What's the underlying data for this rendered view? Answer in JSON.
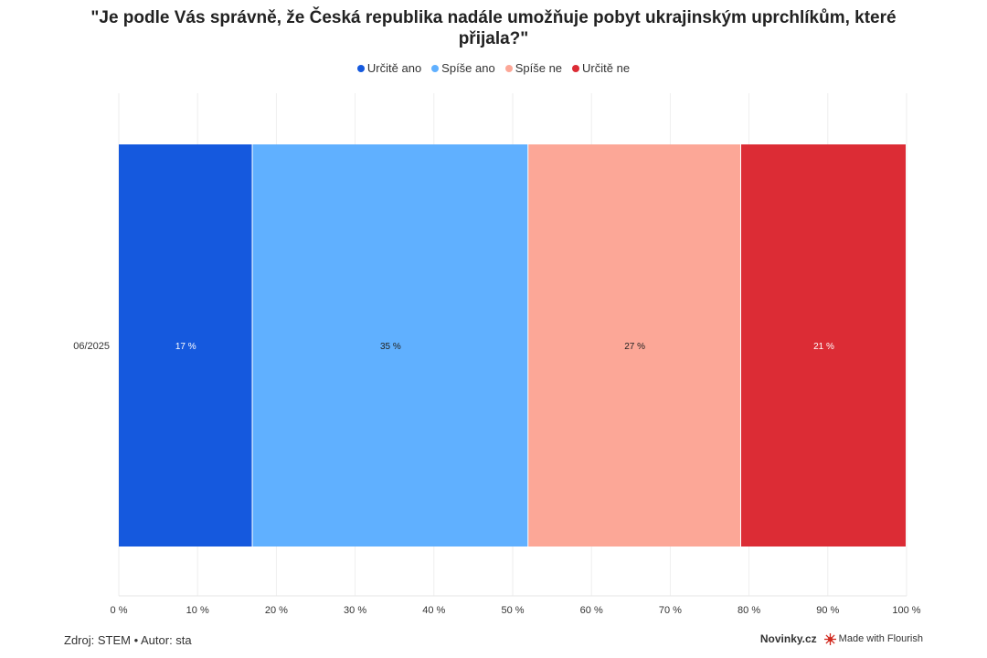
{
  "title": "\"Je podle Vás správně, že Česká republika nadále umožňuje pobyt ukrajinským uprchlíkům, které přijala?\"",
  "legend": [
    {
      "label": "Určitě ano",
      "color": "#1559de"
    },
    {
      "label": "Spíše ano",
      "color": "#60b0ff"
    },
    {
      "label": "Spíše ne",
      "color": "#fca797"
    },
    {
      "label": "Určitě ne",
      "color": "#dc2c35"
    }
  ],
  "chart_data": {
    "type": "bar",
    "orientation": "horizontal",
    "stacked": true,
    "categories": [
      "06/2025"
    ],
    "series": [
      {
        "name": "Určitě ano",
        "values": [
          17
        ],
        "label": "17 %",
        "color": "#1559de",
        "label_color": "#ffffff"
      },
      {
        "name": "Spíše ano",
        "values": [
          35
        ],
        "label": "35 %",
        "color": "#60b0ff",
        "label_color": "#222222"
      },
      {
        "name": "Spíše ne",
        "values": [
          27
        ],
        "label": "27 %",
        "color": "#fca797",
        "label_color": "#222222"
      },
      {
        "name": "Určitě ne",
        "values": [
          21
        ],
        "label": "21 %",
        "color": "#dc2c35",
        "label_color": "#ffffff"
      }
    ],
    "xlim": [
      0,
      100
    ],
    "xticks": [
      "0 %",
      "10 %",
      "20 %",
      "30 %",
      "40 %",
      "50 %",
      "60 %",
      "70 %",
      "80 %",
      "90 %",
      "100 %"
    ],
    "xlabel": "",
    "ylabel": "",
    "legend_position": "top",
    "grid": true
  },
  "footer": {
    "source": "Zdroj: STEM • Autor: sta",
    "brand": "Novinky.cz",
    "made_with": "Made with Flourish"
  }
}
